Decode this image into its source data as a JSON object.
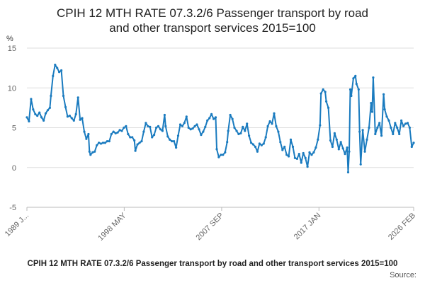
{
  "chart_data": {
    "type": "line",
    "title_lines": [
      "CPIH 12 MTH RATE 07.3.2/6 Passenger transport by road",
      "and other transport services 2015=100"
    ],
    "footer_title": "CPIH 12 MTH RATE 07.3.2/6 Passenger transport by road and other transport services 2015=100",
    "source_label": "Source:",
    "ylabel": "%",
    "ylim": [
      -5,
      15
    ],
    "yticks": [
      15,
      10,
      5,
      0,
      -5
    ],
    "xlim": [
      1989.0,
      2026.08
    ],
    "xticks": [
      {
        "value": 1989.0,
        "label": "1989 J..."
      },
      {
        "value": 1998.33,
        "label": "1998 MAY"
      },
      {
        "value": 2007.67,
        "label": "2007 SEP"
      },
      {
        "value": 2017.0,
        "label": "2017 JAN"
      },
      {
        "value": 2026.08,
        "label": "2026 FEB"
      }
    ],
    "series": [
      {
        "name": "CPIH 12 MTH RATE 07.3.2/6 Passenger transport by road and other transport services 2015=100",
        "color": "#1a7bbf",
        "points": [
          [
            1989.0,
            6.3
          ],
          [
            1989.2,
            5.8
          ],
          [
            1989.4,
            8.6
          ],
          [
            1989.6,
            7.3
          ],
          [
            1989.8,
            6.7
          ],
          [
            1990.0,
            6.5
          ],
          [
            1990.2,
            6.9
          ],
          [
            1990.4,
            6.3
          ],
          [
            1990.6,
            5.9
          ],
          [
            1990.8,
            6.8
          ],
          [
            1991.0,
            7.2
          ],
          [
            1991.2,
            7.5
          ],
          [
            1991.3,
            9.0
          ],
          [
            1991.5,
            11.5
          ],
          [
            1991.7,
            12.9
          ],
          [
            1991.9,
            12.5
          ],
          [
            1992.1,
            12.0
          ],
          [
            1992.3,
            12.2
          ],
          [
            1992.5,
            9.0
          ],
          [
            1992.7,
            7.6
          ],
          [
            1992.9,
            6.4
          ],
          [
            1993.1,
            6.5
          ],
          [
            1993.3,
            6.2
          ],
          [
            1993.5,
            5.9
          ],
          [
            1993.7,
            6.7
          ],
          [
            1993.9,
            8.8
          ],
          [
            1994.1,
            6.0
          ],
          [
            1994.3,
            6.2
          ],
          [
            1994.5,
            4.5
          ],
          [
            1994.7,
            3.6
          ],
          [
            1994.9,
            4.2
          ],
          [
            1995.0,
            2.0
          ],
          [
            1995.1,
            1.6
          ],
          [
            1995.3,
            1.9
          ],
          [
            1995.5,
            2.0
          ],
          [
            1995.7,
            2.8
          ],
          [
            1995.9,
            3.1
          ],
          [
            1996.1,
            3.0
          ],
          [
            1996.3,
            3.1
          ],
          [
            1996.5,
            3.1
          ],
          [
            1996.7,
            3.3
          ],
          [
            1996.9,
            3.3
          ],
          [
            1997.1,
            4.2
          ],
          [
            1997.3,
            4.5
          ],
          [
            1997.5,
            4.3
          ],
          [
            1997.7,
            4.4
          ],
          [
            1997.9,
            4.7
          ],
          [
            1998.1,
            4.6
          ],
          [
            1998.3,
            5.0
          ],
          [
            1998.5,
            5.2
          ],
          [
            1998.7,
            4.2
          ],
          [
            1998.9,
            3.8
          ],
          [
            1999.1,
            3.8
          ],
          [
            1999.3,
            3.4
          ],
          [
            1999.4,
            2.1
          ],
          [
            1999.6,
            2.9
          ],
          [
            1999.8,
            3.1
          ],
          [
            2000.0,
            3.3
          ],
          [
            2000.2,
            4.5
          ],
          [
            2000.4,
            5.6
          ],
          [
            2000.6,
            5.2
          ],
          [
            2000.8,
            5.1
          ],
          [
            2001.0,
            3.8
          ],
          [
            2001.2,
            4.1
          ],
          [
            2001.4,
            5.0
          ],
          [
            2001.6,
            5.2
          ],
          [
            2001.8,
            4.8
          ],
          [
            2002.0,
            4.6
          ],
          [
            2002.2,
            6.6
          ],
          [
            2002.3,
            5.2
          ],
          [
            2002.5,
            3.9
          ],
          [
            2002.7,
            3.5
          ],
          [
            2002.9,
            3.3
          ],
          [
            2003.1,
            3.3
          ],
          [
            2003.3,
            2.5
          ],
          [
            2003.5,
            4.0
          ],
          [
            2003.7,
            5.4
          ],
          [
            2003.9,
            5.2
          ],
          [
            2004.1,
            5.6
          ],
          [
            2004.3,
            6.4
          ],
          [
            2004.5,
            5.0
          ],
          [
            2004.7,
            4.8
          ],
          [
            2004.9,
            4.9
          ],
          [
            2005.1,
            5.2
          ],
          [
            2005.3,
            5.4
          ],
          [
            2005.5,
            4.8
          ],
          [
            2005.7,
            4.1
          ],
          [
            2005.9,
            4.5
          ],
          [
            2006.1,
            5.1
          ],
          [
            2006.3,
            5.9
          ],
          [
            2006.5,
            6.2
          ],
          [
            2006.7,
            6.7
          ],
          [
            2006.9,
            6.1
          ],
          [
            2007.1,
            6.3
          ],
          [
            2007.2,
            2.3
          ],
          [
            2007.4,
            1.3
          ],
          [
            2007.6,
            1.6
          ],
          [
            2007.8,
            1.6
          ],
          [
            2008.0,
            1.9
          ],
          [
            2008.2,
            3.2
          ],
          [
            2008.3,
            4.6
          ],
          [
            2008.5,
            6.6
          ],
          [
            2008.7,
            6.1
          ],
          [
            2008.9,
            5.0
          ],
          [
            2009.1,
            4.6
          ],
          [
            2009.3,
            4.2
          ],
          [
            2009.5,
            4.3
          ],
          [
            2009.7,
            5.1
          ],
          [
            2009.9,
            4.6
          ],
          [
            2010.1,
            5.5
          ],
          [
            2010.3,
            4.0
          ],
          [
            2010.5,
            3.1
          ],
          [
            2010.7,
            2.9
          ],
          [
            2010.9,
            2.6
          ],
          [
            2011.1,
            2.0
          ],
          [
            2011.3,
            3.0
          ],
          [
            2011.5,
            2.8
          ],
          [
            2011.7,
            3.0
          ],
          [
            2011.9,
            3.8
          ],
          [
            2012.1,
            5.2
          ],
          [
            2012.3,
            5.8
          ],
          [
            2012.5,
            5.5
          ],
          [
            2012.7,
            6.8
          ],
          [
            2012.9,
            5.2
          ],
          [
            2013.1,
            4.5
          ],
          [
            2013.3,
            3.2
          ],
          [
            2013.5,
            2.2
          ],
          [
            2013.7,
            2.6
          ],
          [
            2013.9,
            1.6
          ],
          [
            2014.1,
            1.4
          ],
          [
            2014.3,
            3.5
          ],
          [
            2014.5,
            2.6
          ],
          [
            2014.7,
            1.2
          ],
          [
            2014.9,
            1.1
          ],
          [
            2015.1,
            1.7
          ],
          [
            2015.3,
            0.6
          ],
          [
            2015.5,
            1.8
          ],
          [
            2015.7,
            1.2
          ],
          [
            2015.9,
            0.1
          ],
          [
            2016.1,
            1.9
          ],
          [
            2016.3,
            1.6
          ],
          [
            2016.5,
            1.9
          ],
          [
            2016.7,
            2.5
          ],
          [
            2016.9,
            3.5
          ],
          [
            2017.1,
            5.3
          ],
          [
            2017.2,
            9.3
          ],
          [
            2017.4,
            9.8
          ],
          [
            2017.6,
            9.5
          ],
          [
            2017.7,
            8.3
          ],
          [
            2017.9,
            7.5
          ],
          [
            2018.1,
            3.4
          ],
          [
            2018.3,
            2.6
          ],
          [
            2018.5,
            4.3
          ],
          [
            2018.7,
            3.5
          ],
          [
            2018.9,
            2.3
          ],
          [
            2019.1,
            3.2
          ],
          [
            2019.3,
            2.4
          ],
          [
            2019.5,
            1.7
          ],
          [
            2019.7,
            2.5
          ],
          [
            2019.8,
            -0.6
          ],
          [
            2019.9,
            2.0
          ],
          [
            2020.0,
            9.8
          ],
          [
            2020.1,
            9.0
          ],
          [
            2020.3,
            11.2
          ],
          [
            2020.5,
            11.5
          ],
          [
            2020.6,
            10.5
          ],
          [
            2020.8,
            9.8
          ],
          [
            2020.9,
            4.5
          ],
          [
            2021.0,
            0.4
          ],
          [
            2021.2,
            4.7
          ],
          [
            2021.4,
            2.0
          ],
          [
            2021.6,
            3.5
          ],
          [
            2021.8,
            5.0
          ],
          [
            2022.0,
            8.1
          ],
          [
            2022.1,
            7.0
          ],
          [
            2022.2,
            11.3
          ],
          [
            2022.4,
            4.2
          ],
          [
            2022.6,
            5.0
          ],
          [
            2022.8,
            5.6
          ],
          [
            2023.0,
            4.0
          ],
          [
            2023.2,
            9.2
          ],
          [
            2023.3,
            7.3
          ],
          [
            2023.5,
            6.4
          ],
          [
            2023.7,
            5.9
          ],
          [
            2023.9,
            5.0
          ],
          [
            2024.1,
            4.2
          ],
          [
            2024.3,
            5.6
          ],
          [
            2024.5,
            5.0
          ],
          [
            2024.7,
            4.2
          ],
          [
            2024.9,
            5.9
          ],
          [
            2025.1,
            5.2
          ],
          [
            2025.3,
            5.5
          ],
          [
            2025.5,
            5.6
          ],
          [
            2025.7,
            5.0
          ],
          [
            2025.9,
            2.6
          ],
          [
            2026.08,
            3.1
          ]
        ]
      }
    ]
  }
}
